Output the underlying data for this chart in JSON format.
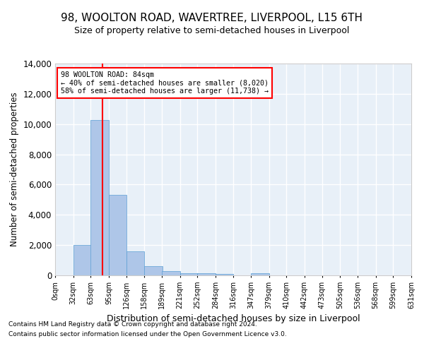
{
  "title": "98, WOOLTON ROAD, WAVERTREE, LIVERPOOL, L15 6TH",
  "subtitle": "Size of property relative to semi-detached houses in Liverpool",
  "xlabel": "Distribution of semi-detached houses by size in Liverpool",
  "ylabel": "Number of semi-detached properties",
  "bar_color": "#aec6e8",
  "bar_edge_color": "#5a9fd4",
  "bg_color": "#e8f0f8",
  "grid_color": "#ffffff",
  "property_line_color": "#ff0000",
  "property_size": 84,
  "property_label": "98 WOOLTON ROAD: 84sqm",
  "smaller_pct": "40%",
  "smaller_count": "8,020",
  "larger_pct": "58%",
  "larger_count": "11,738",
  "bin_edges": [
    0,
    32,
    63,
    95,
    126,
    158,
    189,
    221,
    252,
    284,
    316,
    347,
    379,
    410,
    442,
    473,
    505,
    536,
    568,
    599,
    631
  ],
  "bin_counts": [
    0,
    2020,
    10250,
    5300,
    1600,
    620,
    270,
    160,
    130,
    110,
    0,
    130,
    0,
    0,
    0,
    0,
    0,
    0,
    0,
    0
  ],
  "ylim": [
    0,
    14000
  ],
  "yticks": [
    0,
    2000,
    4000,
    6000,
    8000,
    10000,
    12000,
    14000
  ],
  "footer_line1": "Contains HM Land Registry data © Crown copyright and database right 2024.",
  "footer_line2": "Contains public sector information licensed under the Open Government Licence v3.0."
}
